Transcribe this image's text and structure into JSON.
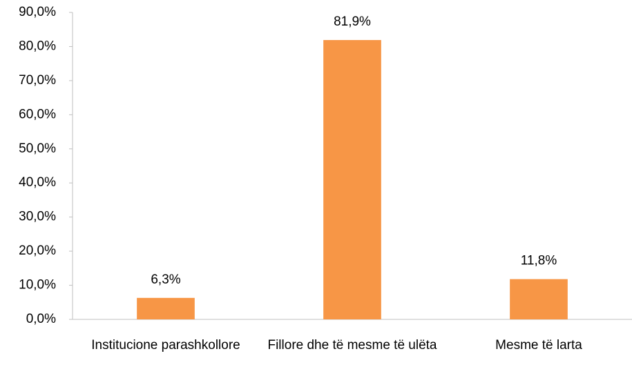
{
  "chart_data": {
    "type": "bar",
    "categories": [
      "Institucione parashkollore",
      "Fillore dhe të mesme të ulëta",
      "Mesme të larta"
    ],
    "values": [
      6.3,
      81.9,
      11.8
    ],
    "value_labels": [
      "6,3%",
      "81,9%",
      "11,8%"
    ],
    "color": "#f79646",
    "ylim": [
      0,
      90
    ],
    "yticks": [
      {
        "value": 0,
        "label": "0,0%"
      },
      {
        "value": 10,
        "label": "10,0%"
      },
      {
        "value": 20,
        "label": "20,0%"
      },
      {
        "value": 30,
        "label": "30,0%"
      },
      {
        "value": 40,
        "label": "40,0%"
      },
      {
        "value": 50,
        "label": "50,0%"
      },
      {
        "value": 60,
        "label": "60,0%"
      },
      {
        "value": 70,
        "label": "70,0%"
      },
      {
        "value": 80,
        "label": "80,0%"
      },
      {
        "value": 90,
        "label": "90,0%"
      }
    ],
    "grid": false
  }
}
